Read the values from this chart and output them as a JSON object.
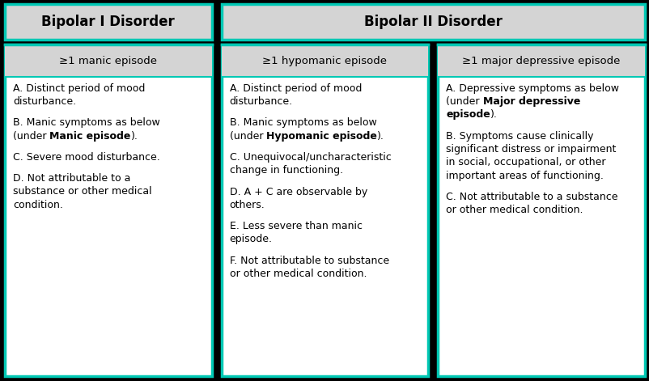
{
  "background_color": "#000000",
  "cell_bg": "#ffffff",
  "header_bg": "#d4d4d4",
  "border_color": "#00c8b4",
  "text_color": "#000000",
  "figsize": [
    8.03,
    4.71
  ],
  "dpi": 100,
  "title1": "Bipolar I Disorder",
  "title2": "Bipolar II Disorder",
  "col0_subtitle": "≥1 manic episode",
  "col1_subtitle": "≥1 hypomanic episode",
  "col2_subtitle": "≥1 major depressive episode",
  "col0_paras": [
    [
      [
        "A. Distinct period of mood\ndisturbance.",
        "normal"
      ]
    ],
    [
      [
        "B. Manic symptoms as below\n(under ",
        "normal"
      ],
      [
        "Manic episode",
        "bold"
      ],
      [
        ").",
        "normal"
      ]
    ],
    [
      [
        "C. Severe mood disturbance.",
        "normal"
      ]
    ],
    [
      [
        "D. Not attributable to a\nsubstance or other medical\ncondition.",
        "normal"
      ]
    ]
  ],
  "col1_paras": [
    [
      [
        "A. Distinct period of mood\ndisturbance.",
        "normal"
      ]
    ],
    [
      [
        "B. Manic symptoms as below\n(under ",
        "normal"
      ],
      [
        "Hypomanic episode",
        "bold"
      ],
      [
        ").",
        "normal"
      ]
    ],
    [
      [
        "C. Unequivocal/uncharacteristic\nchange in functioning.",
        "normal"
      ]
    ],
    [
      [
        "D. A + C are observable by\nothers.",
        "normal"
      ]
    ],
    [
      [
        "E. Less severe than manic\nepisode.",
        "normal"
      ]
    ],
    [
      [
        "F. Not attributable to substance\nor other medical condition.",
        "normal"
      ]
    ]
  ],
  "col2_paras": [
    [
      [
        "A. Depressive symptoms as below\n(under ",
        "normal"
      ],
      [
        "Major depressive\nepisode",
        "bold"
      ],
      [
        ").",
        "normal"
      ]
    ],
    [
      [
        "B. Symptoms cause clinically\nsignificant distress or impairment\nin social, occupational, or other\nimportant areas of functioning.",
        "normal"
      ]
    ],
    [
      [
        "C. Not attributable to a substance\nor other medical condition.",
        "normal"
      ]
    ]
  ]
}
